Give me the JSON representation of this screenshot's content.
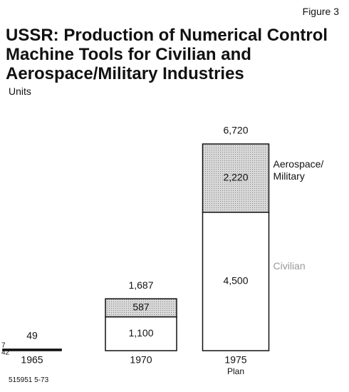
{
  "chart_data": {
    "type": "stacked_bar",
    "figure_label": "Figure 3",
    "title": "USSR: Production of Numerical Control Machine Tools for Civilian and Aerospace/Military Industries",
    "y_label": "Units",
    "categories": [
      "1965",
      "1970",
      "1975"
    ],
    "annotation": "Plan",
    "series": [
      {
        "name": "Civilian",
        "color": "#ffffff",
        "values": [
          42,
          1100,
          4500
        ],
        "value_labels": [
          "42",
          "1,100",
          "4,500"
        ]
      },
      {
        "name": "Aerospace/ Military",
        "color": "#cfcfcf",
        "values": [
          7,
          587,
          2220
        ],
        "value_labels": [
          "7",
          "587",
          "2,220"
        ]
      }
    ],
    "totals": [
      49,
      1687,
      6720
    ],
    "total_labels": [
      "49",
      "1,687",
      "6,720"
    ],
    "footnote": "515951 5-73"
  }
}
